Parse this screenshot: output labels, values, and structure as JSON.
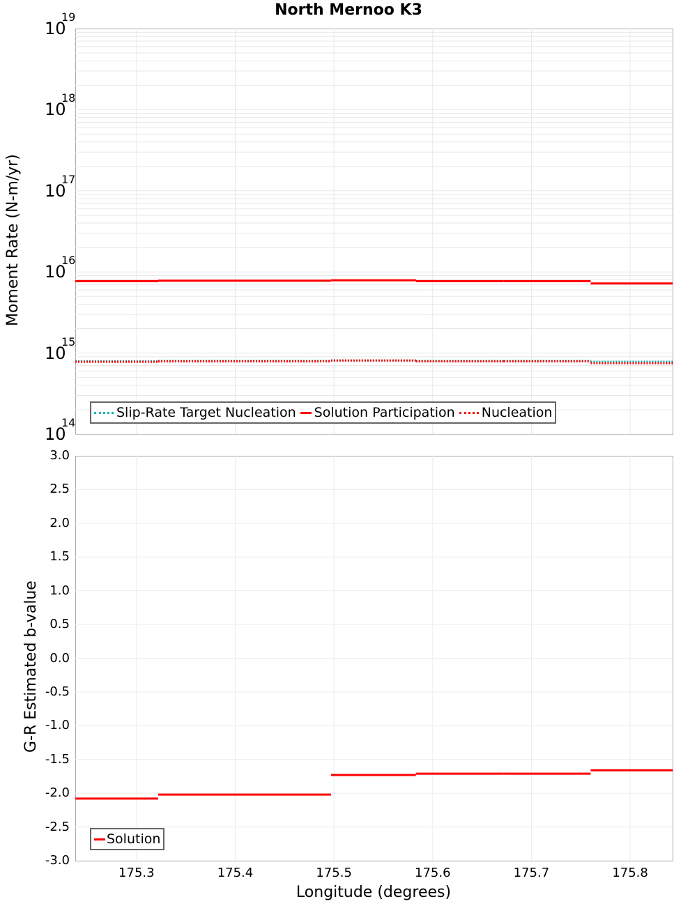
{
  "title": "North Mernoo K3",
  "top_plot": {
    "ylabel": "Moment Rate (N-m/yr)",
    "yticks": [
      {
        "base": "10",
        "exp": "19"
      },
      {
        "base": "10",
        "exp": "18"
      },
      {
        "base": "10",
        "exp": "17"
      },
      {
        "base": "10",
        "exp": "16"
      },
      {
        "base": "10",
        "exp": "15"
      },
      {
        "base": "10",
        "exp": "14"
      }
    ],
    "legend": [
      {
        "label": "Slip-Rate Target Nucleation",
        "color": "#00b3b3",
        "style": "dotted"
      },
      {
        "label": "Solution Participation",
        "color": "#ff0000",
        "style": "solid"
      },
      {
        "label": "Nucleation",
        "color": "#ff0000",
        "style": "dotted"
      }
    ]
  },
  "bottom_plot": {
    "ylabel": "G-R Estimated b-value",
    "yticks": [
      "3.0",
      "2.5",
      "2.0",
      "1.5",
      "1.0",
      "0.5",
      "0.0",
      "-0.5",
      "-1.0",
      "-1.5",
      "-2.0",
      "-2.5",
      "-3.0"
    ],
    "legend": [
      {
        "label": "Solution",
        "color": "#ff0000",
        "style": "solid"
      }
    ]
  },
  "xaxis": {
    "label": "Longitude (degrees)",
    "ticks": [
      "175.3",
      "175.4",
      "175.5",
      "175.6",
      "175.7",
      "175.8"
    ]
  },
  "chart_data": [
    {
      "type": "line",
      "title": "North Mernoo K3",
      "xlabel": "Longitude (degrees)",
      "ylabel": "Moment Rate (N-m/yr)",
      "yscale": "log",
      "ylim": [
        100000000000000.0,
        1e+19
      ],
      "xlim": [
        175.238,
        175.843
      ],
      "grid": true,
      "legend_position": "lower left",
      "x_breaks": [
        175.238,
        175.322,
        175.497,
        175.583,
        175.672,
        175.76,
        175.843
      ],
      "series": [
        {
          "name": "Slip-Rate Target Nucleation",
          "values": [
            790000000000000.0,
            800000000000000.0,
            810000000000000.0,
            800000000000000.0,
            800000000000000.0,
            780000000000000.0
          ]
        },
        {
          "name": "Solution Participation",
          "values": [
            7700000000000000.0,
            7800000000000000.0,
            7900000000000000.0,
            7700000000000000.0,
            7700000000000000.0,
            7200000000000000.0
          ]
        },
        {
          "name": "Nucleation",
          "values": [
            780000000000000.0,
            790000000000000.0,
            810000000000000.0,
            790000000000000.0,
            790000000000000.0,
            750000000000000.0
          ]
        }
      ]
    },
    {
      "type": "line",
      "xlabel": "Longitude (degrees)",
      "ylabel": "G-R Estimated b-value",
      "ylim": [
        -3.0,
        3.0
      ],
      "xlim": [
        175.238,
        175.843
      ],
      "grid": true,
      "legend_position": "lower left",
      "x_breaks": [
        175.238,
        175.322,
        175.497,
        175.583,
        175.672,
        175.76,
        175.843
      ],
      "series": [
        {
          "name": "Solution",
          "values": [
            -2.08,
            -2.02,
            -1.73,
            -1.71,
            -1.71,
            -1.66
          ]
        }
      ]
    }
  ]
}
